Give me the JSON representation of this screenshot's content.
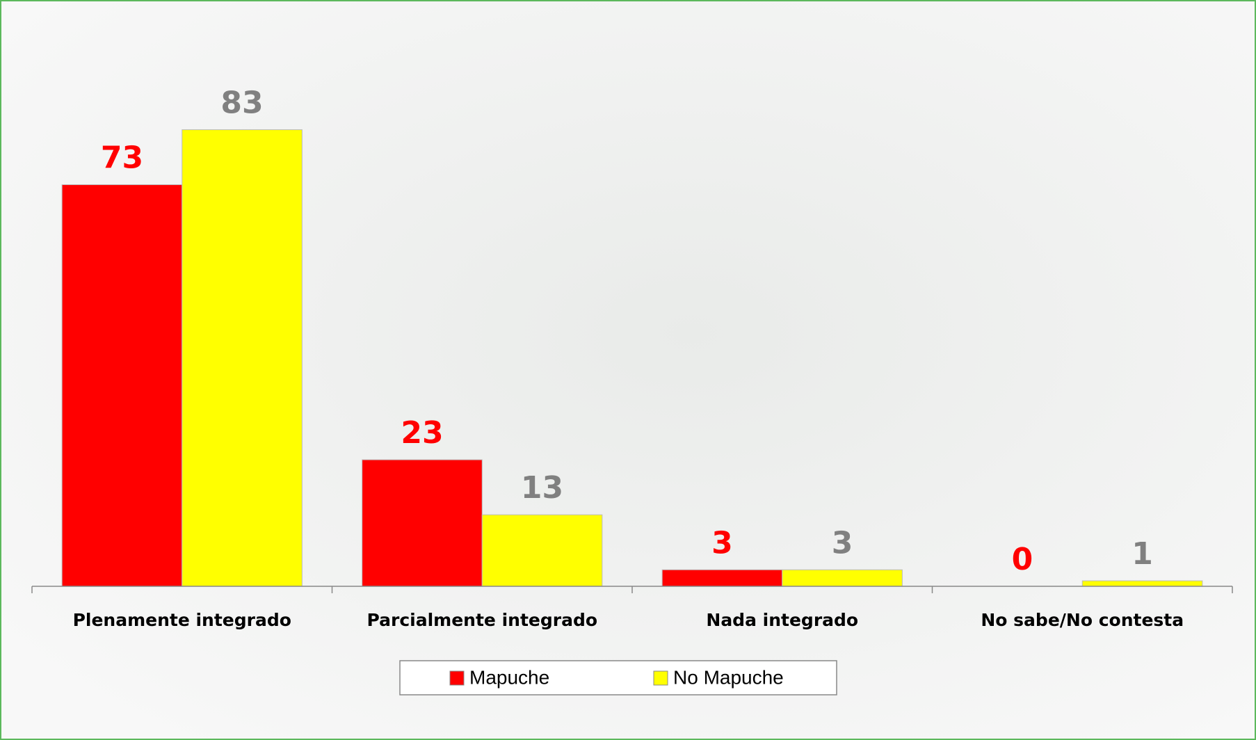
{
  "chart_data": {
    "type": "bar",
    "categories": [
      "Plenamente integrado",
      "Parcialmente integrado",
      "Nada integrado",
      "No sabe/No contesta"
    ],
    "series": [
      {
        "name": "Mapuche",
        "color": "#ff0000",
        "label_color": "#ff0000",
        "values": [
          73,
          23,
          3,
          0
        ]
      },
      {
        "name": "No Mapuche",
        "color": "#ffff00",
        "label_color": "#808080",
        "values": [
          83,
          13,
          3,
          1
        ]
      }
    ],
    "ylim": [
      0,
      100
    ],
    "grid": false,
    "legend": "bottom"
  }
}
